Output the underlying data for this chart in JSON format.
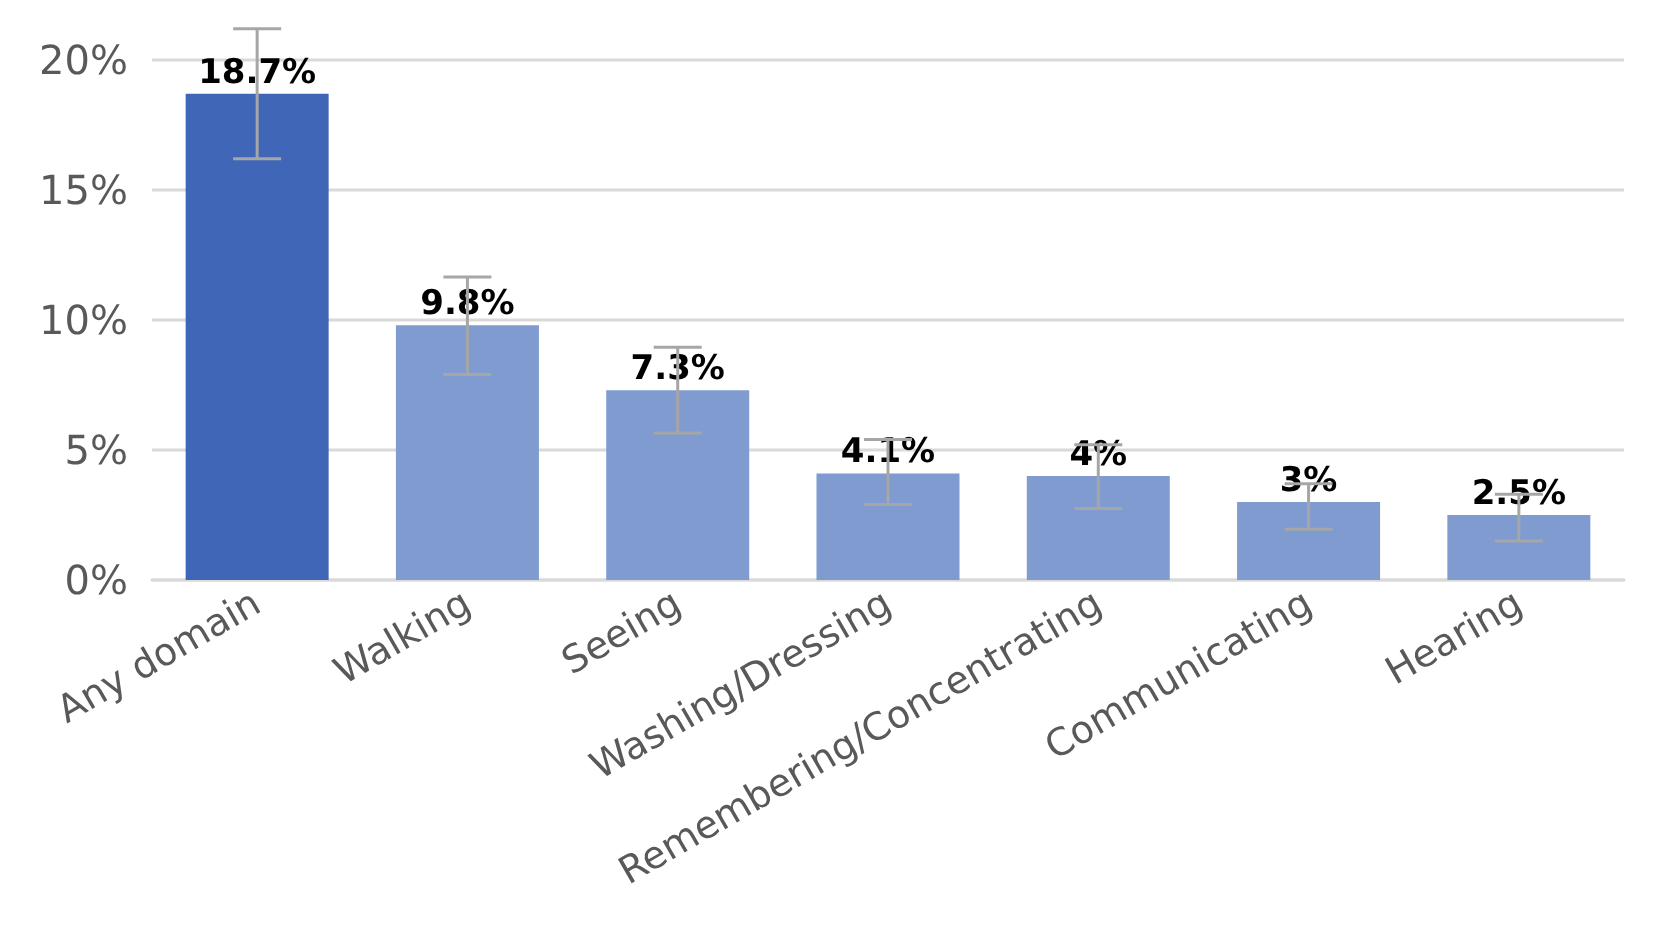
{
  "chart_data": {
    "type": "bar",
    "categories": [
      "Any domain",
      "Walking",
      "Seeing",
      "Washing/Dressing",
      "Remembering/Concentrating",
      "Communicating",
      "Hearing"
    ],
    "values": [
      18.7,
      9.8,
      7.3,
      4.1,
      4,
      3,
      2.5
    ],
    "colors": [
      "#4066b8",
      "#7f9bd0",
      "#7f9bd0",
      "#7f9bd0",
      "#7f9bd0",
      "#7f9bd0",
      "#7f9bd0"
    ],
    "errors": [
      [
        16.2,
        21.2
      ],
      [
        7.9,
        11.65
      ],
      [
        5.65,
        8.95
      ],
      [
        2.9,
        5.4
      ],
      [
        2.75,
        5.2
      ],
      [
        1.95,
        3.7
      ],
      [
        1.5,
        3.3
      ]
    ],
    "value_labels": [
      "18.7%",
      "9.8%",
      "7.3%",
      "4.1%",
      "4%",
      "3%",
      "2.5%"
    ],
    "ylim": [
      0,
      20
    ],
    "yticks": [
      {
        "value": 0,
        "label": "0%"
      },
      {
        "value": 5,
        "label": "5%"
      },
      {
        "value": 10,
        "label": "10%"
      },
      {
        "value": 15,
        "label": "15%"
      },
      {
        "value": 20,
        "label": "20%"
      }
    ],
    "grid": "y"
  }
}
